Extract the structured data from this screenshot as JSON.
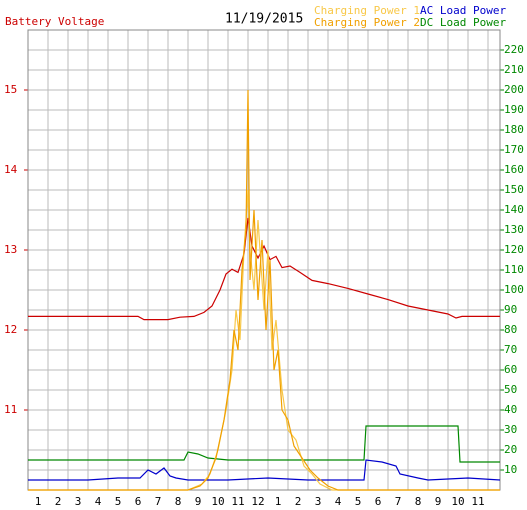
{
  "chart_data": {
    "type": "line",
    "title": "11/19/2015",
    "ylabel": "Battery Voltage",
    "xlim": [
      0,
      23.6
    ],
    "xticks": [
      1,
      2,
      3,
      4,
      5,
      6,
      7,
      8,
      9,
      10,
      11,
      12,
      {
        "value": 13,
        "label": "1"
      },
      {
        "value": 14,
        "label": "2"
      },
      {
        "value": 15,
        "label": "3"
      },
      {
        "value": 16,
        "label": "4"
      },
      {
        "value": 17,
        "label": "5"
      },
      {
        "value": 18,
        "label": "6"
      },
      {
        "value": 19,
        "label": "7"
      },
      {
        "value": 20,
        "label": "8"
      },
      {
        "value": 21,
        "label": "9"
      },
      {
        "value": 22,
        "label": "10"
      },
      {
        "value": 23,
        "label": "11"
      }
    ],
    "ylim": [
      10,
      15.75
    ],
    "yticks": [
      11,
      12,
      13,
      14,
      15
    ],
    "y2lim": [
      0,
      230
    ],
    "y2ticks": [
      10,
      20,
      30,
      40,
      50,
      60,
      70,
      80,
      90,
      100,
      110,
      120,
      130,
      140,
      150,
      160,
      170,
      180,
      190,
      200,
      210,
      220
    ],
    "grid": true,
    "ycolor": "#cc0000",
    "y2color": "#008800",
    "series": [
      {
        "name": "DC Load Power",
        "color": "#008800",
        "axis": "y2",
        "x": [
          0,
          7.8,
          8,
          8.5,
          9,
          10,
          16.8,
          16.9,
          21.5,
          21.6,
          23.6
        ],
        "values": [
          15,
          15,
          19,
          18,
          16,
          15,
          15,
          32,
          32,
          14,
          14
        ]
      },
      {
        "name": "AC Load Power",
        "color": "#0000cc",
        "axis": "y2",
        "x": [
          0,
          3,
          4.5,
          5.6,
          6,
          6.4,
          6.8,
          7.1,
          7.4,
          8,
          10,
          12,
          14,
          16.8,
          16.9,
          17.7,
          18.4,
          18.6,
          19.5,
          20,
          22,
          23.6
        ],
        "values": [
          5,
          5,
          6,
          6,
          10,
          8,
          11,
          7,
          6,
          5,
          5,
          6,
          5,
          5,
          15,
          14,
          12,
          8,
          6,
          5,
          6,
          5
        ]
      },
      {
        "name": "Battery Voltage",
        "color": "#cc0000",
        "axis": "y",
        "x": [
          0,
          5.5,
          5.8,
          7,
          7.6,
          8.3,
          8.8,
          9.2,
          9.6,
          9.9,
          10.2,
          10.5,
          10.8,
          11.0,
          11.2,
          11.5,
          11.8,
          12.1,
          12.4,
          12.7,
          13.1,
          13.6,
          14.2,
          15,
          16,
          17,
          18,
          19,
          20,
          21,
          21.4,
          21.7,
          23.6
        ],
        "values": [
          12.17,
          12.17,
          12.13,
          12.13,
          12.16,
          12.17,
          12.22,
          12.3,
          12.5,
          12.7,
          12.76,
          12.72,
          12.95,
          13.4,
          13.05,
          12.9,
          13.05,
          12.88,
          12.92,
          12.78,
          12.8,
          12.72,
          12.62,
          12.58,
          12.52,
          12.45,
          12.38,
          12.3,
          12.25,
          12.2,
          12.15,
          12.17,
          12.17
        ]
      },
      {
        "name": "Charging Power 1",
        "color": "#f8c848",
        "axis": "y2",
        "x": [
          0,
          8,
          8.7,
          9.1,
          9.5,
          9.9,
          10.2,
          10.4,
          10.6,
          10.8,
          11.0,
          11.1,
          11.3,
          11.5,
          11.8,
          12.0,
          12.2,
          12.4,
          12.7,
          13,
          13.4,
          13.8,
          14.2,
          14.6,
          15.2,
          23.6
        ],
        "values": [
          0,
          0,
          3,
          8,
          20,
          40,
          60,
          90,
          75,
          120,
          150,
          120,
          100,
          135,
          90,
          120,
          70,
          85,
          50,
          30,
          25,
          12,
          8,
          3,
          0,
          0
        ]
      },
      {
        "name": "Charging Power 2",
        "color": "#f0a000",
        "axis": "y2",
        "x": [
          0,
          8,
          8.6,
          9,
          9.4,
          9.8,
          10.1,
          10.3,
          10.5,
          10.7,
          10.9,
          11.0,
          11.1,
          11.3,
          11.5,
          11.7,
          11.9,
          12.1,
          12.3,
          12.5,
          12.7,
          13.0,
          13.3,
          13.7,
          14.1,
          14.5,
          15,
          15.5,
          23.6
        ],
        "values": [
          0,
          0,
          2,
          6,
          16,
          35,
          55,
          80,
          70,
          110,
          130,
          200,
          105,
          140,
          95,
          125,
          80,
          115,
          60,
          70,
          40,
          35,
          22,
          16,
          10,
          6,
          2,
          0,
          0
        ]
      }
    ]
  }
}
